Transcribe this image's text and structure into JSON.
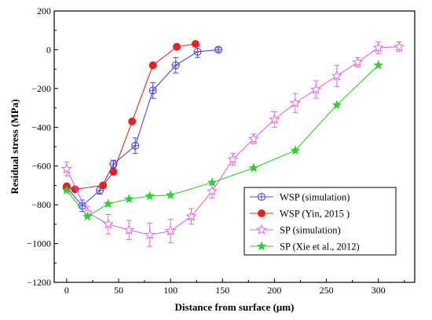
{
  "chart_data": {
    "type": "line",
    "xlabel": "Distance from surface (μm)",
    "ylabel": "Residual stress (MPa)",
    "xlim": [
      -12,
      335
    ],
    "ylim": [
      -1200,
      200
    ],
    "xticks": [
      "0",
      "50",
      "100",
      "150",
      "200",
      "250",
      "300"
    ],
    "xtick_values": [
      0,
      50,
      100,
      150,
      200,
      250,
      300
    ],
    "yticks": [
      "200",
      "0",
      "−200",
      "−400",
      "−600",
      "−800",
      "−1000",
      "−1200"
    ],
    "ytick_values": [
      200,
      0,
      -200,
      -400,
      -600,
      -800,
      -1000,
      -1200
    ],
    "grid": false,
    "legend_position": "lower-right",
    "series": [
      {
        "name": "WSP (simulation)",
        "color": "#4a4ae6",
        "marker": "circle-plus",
        "x": [
          0,
          15,
          32,
          45,
          66,
          83,
          105,
          126,
          146
        ],
        "y": [
          -710,
          -805,
          -725,
          -590,
          -495,
          -210,
          -80,
          -10,
          0
        ],
        "yerr": [
          20,
          30,
          20,
          20,
          40,
          40,
          40,
          30,
          10
        ]
      },
      {
        "name": "WSP (Yin, 2015 )",
        "color": "#e82020",
        "marker": "filled-circle",
        "x": [
          0,
          8,
          35,
          45,
          63,
          83,
          106,
          124
        ],
        "y": [
          -705,
          -720,
          -700,
          -630,
          -370,
          -80,
          15,
          30
        ],
        "yerr": []
      },
      {
        "name": "SP (simulation)",
        "color": "#e066e8",
        "marker": "open-star",
        "x": [
          0,
          20,
          40,
          60,
          80,
          100,
          120,
          140,
          160,
          180,
          200,
          220,
          240,
          260,
          280,
          300,
          320
        ],
        "y": [
          -615,
          -840,
          -900,
          -930,
          -955,
          -935,
          -860,
          -730,
          -565,
          -460,
          -360,
          -275,
          -205,
          -135,
          -65,
          10,
          15
        ],
        "yerr": [
          35,
          30,
          50,
          50,
          60,
          60,
          40,
          35,
          30,
          25,
          40,
          50,
          45,
          55,
          25,
          30,
          25
        ]
      },
      {
        "name": "SP (Xie et al., 2012)",
        "color": "#33cc33",
        "marker": "filled-star",
        "x": [
          0,
          20,
          40,
          60,
          80,
          100,
          140,
          180,
          220,
          260,
          300
        ],
        "y": [
          -725,
          -860,
          -795,
          -770,
          -755,
          -750,
          -685,
          -610,
          -520,
          -285,
          -80
        ],
        "yerr": []
      }
    ]
  }
}
